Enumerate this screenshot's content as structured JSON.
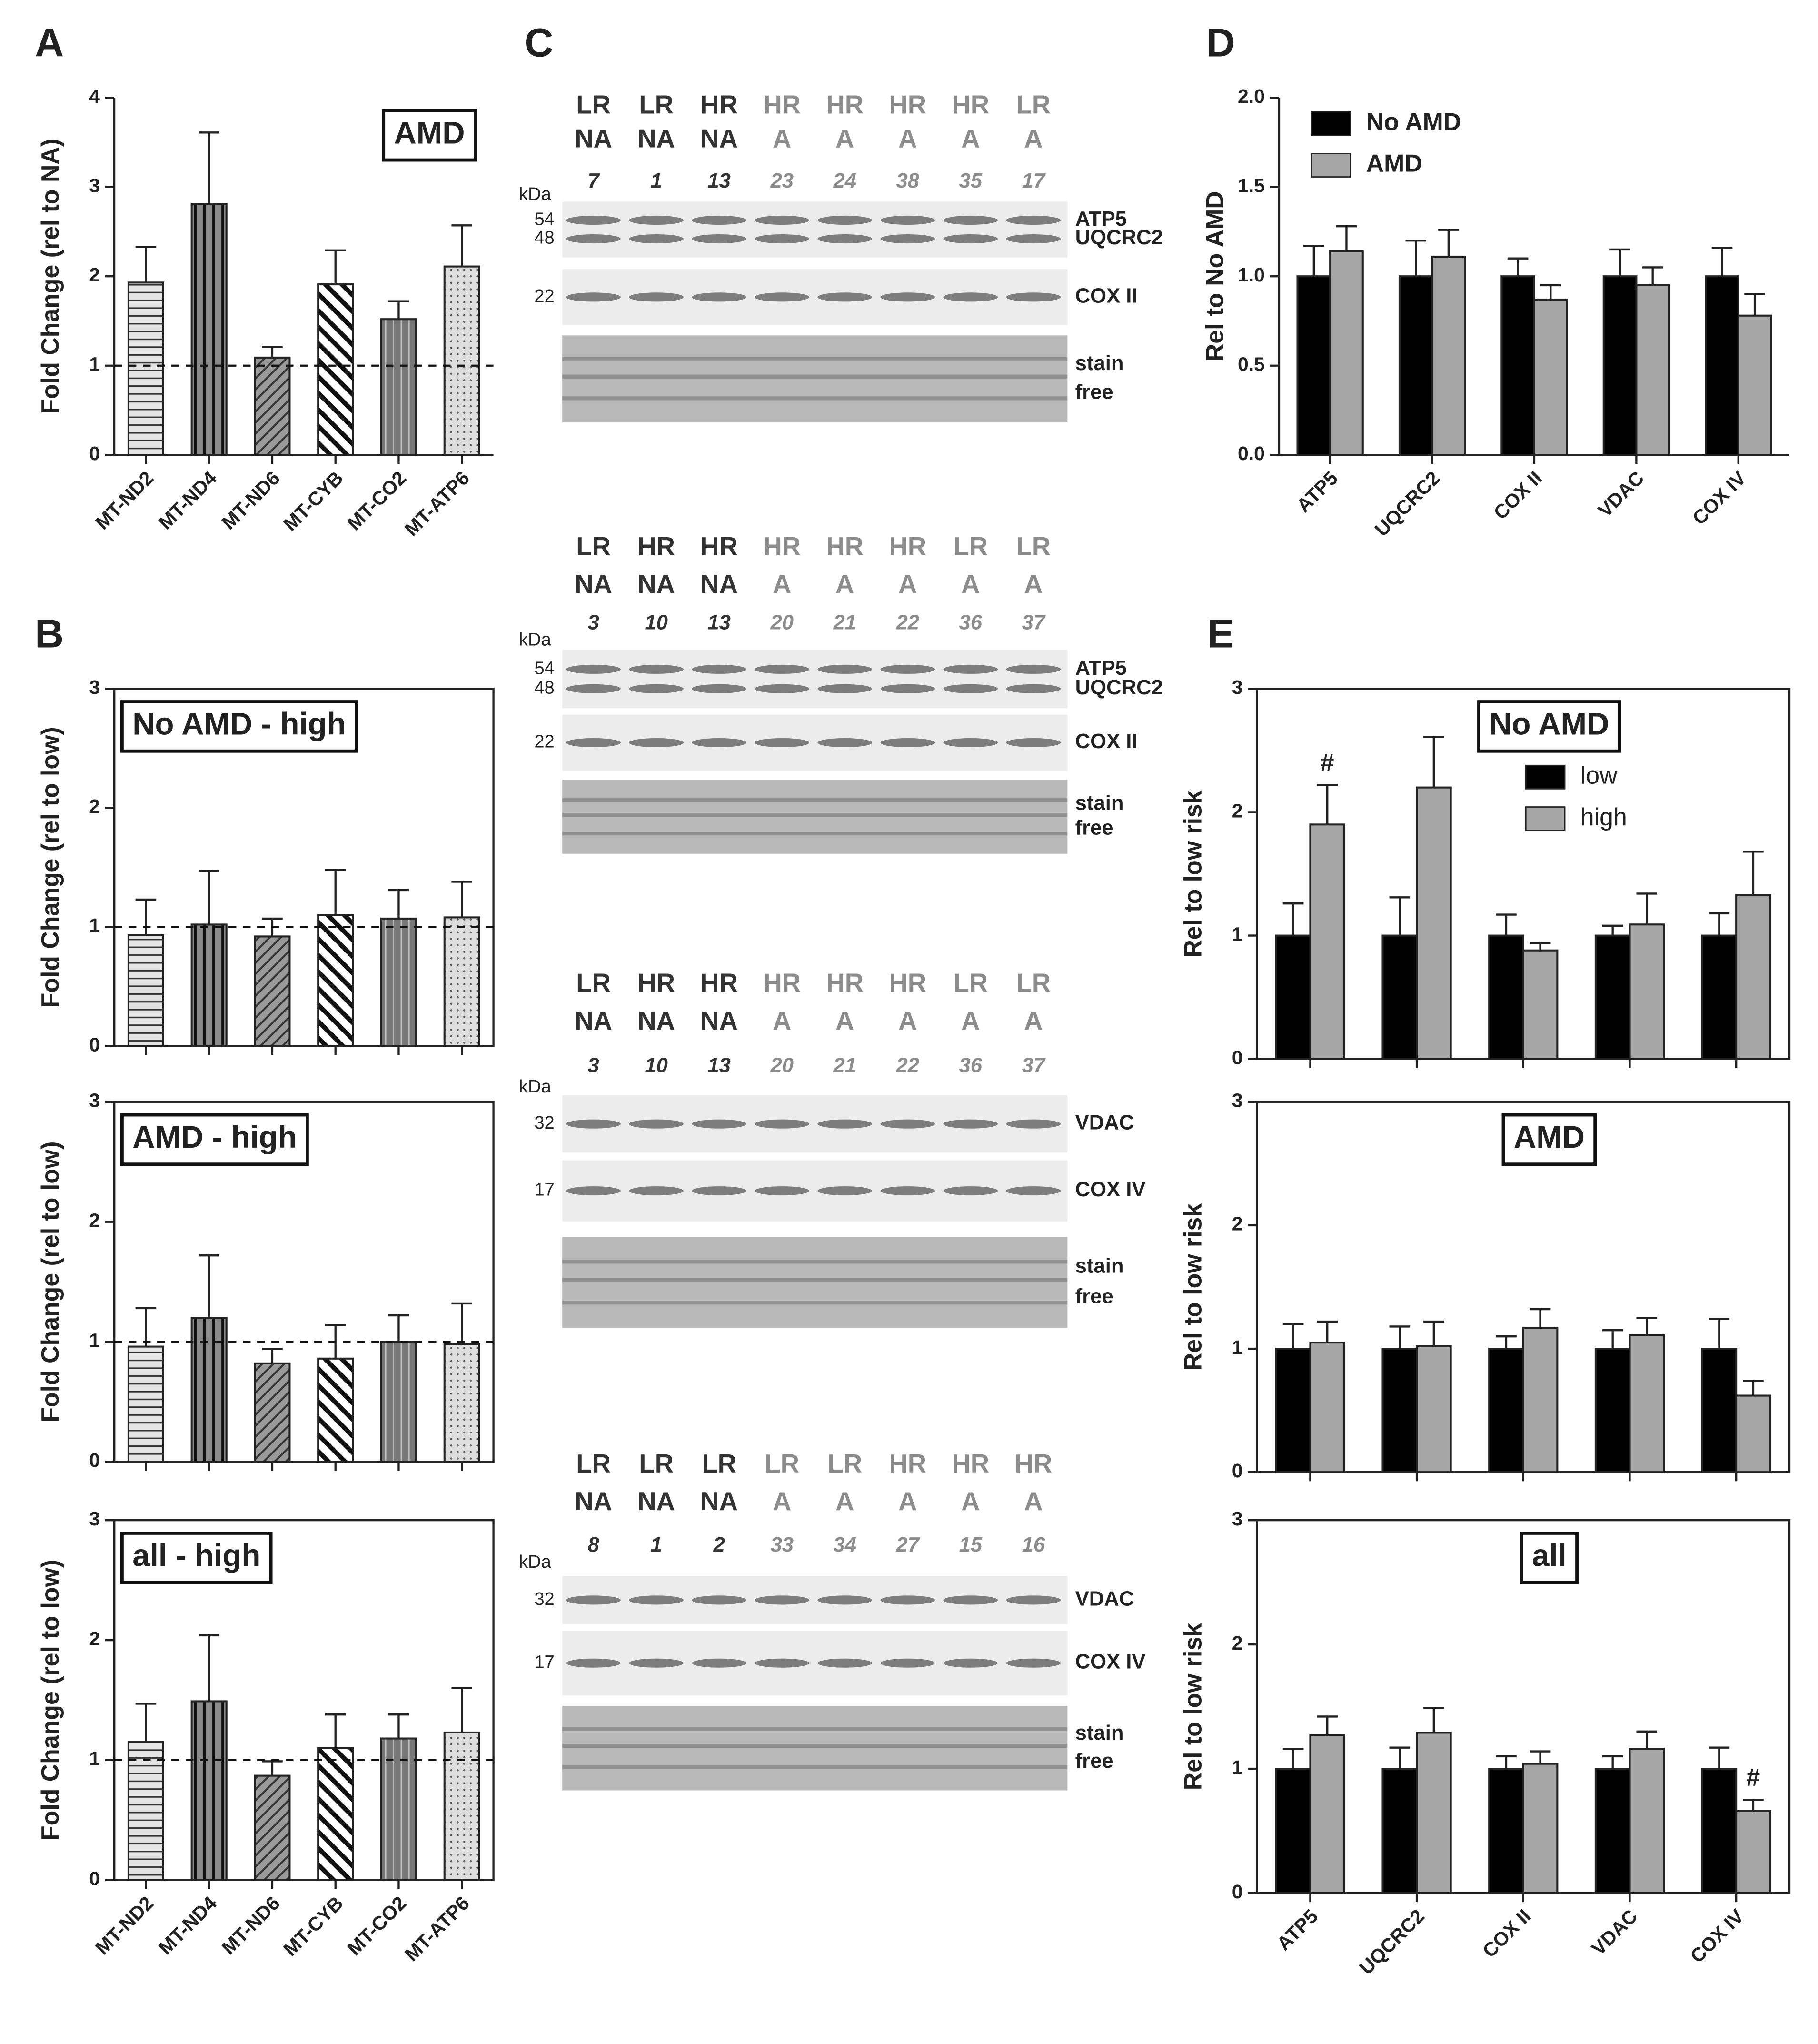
{
  "panel_labels": [
    "A",
    "B",
    "C",
    "D",
    "E"
  ],
  "chart_data": [
    {
      "type": "bar",
      "title": "AMD",
      "ylabel": "Fold Change (rel to NA)",
      "categories": [
        "MT-ND2",
        "MT-ND4",
        "MT-ND6",
        "MT-CYB",
        "MT-CO2",
        "MT-ATP6"
      ],
      "values": [
        1.93,
        2.81,
        1.09,
        1.91,
        1.52,
        2.11
      ],
      "errors": [
        0.4,
        0.8,
        0.12,
        0.38,
        0.2,
        0.46
      ],
      "patterns": [
        "p-h",
        "p-v",
        "p-d",
        "p-d2",
        "p-v2",
        "p-dot"
      ],
      "ylim": [
        0,
        4
      ],
      "yticks": [
        0,
        1,
        2,
        3,
        4
      ],
      "reference_line": 1
    },
    {
      "type": "bar",
      "title": "No AMD - high",
      "ylabel": "Fold Change (rel to low)",
      "categories": [
        null,
        null,
        null,
        null,
        null,
        null
      ],
      "values": [
        0.93,
        1.02,
        0.92,
        1.1,
        1.07,
        1.08
      ],
      "errors": [
        0.3,
        0.45,
        0.15,
        0.38,
        0.24,
        0.3
      ],
      "patterns": [
        "p-h",
        "p-v",
        "p-d",
        "p-d2",
        "p-v2",
        "p-dot"
      ],
      "ylim": [
        0,
        3
      ],
      "yticks": [
        0,
        1,
        2,
        3
      ],
      "reference_line": 1
    },
    {
      "type": "bar",
      "title": "AMD - high",
      "ylabel": "Fold Change (rel to low)",
      "categories": [
        null,
        null,
        null,
        null,
        null,
        null
      ],
      "values": [
        0.96,
        1.2,
        0.82,
        0.86,
        1.0,
        0.98
      ],
      "errors": [
        0.32,
        0.52,
        0.12,
        0.28,
        0.22,
        0.34
      ],
      "patterns": [
        "p-h",
        "p-v",
        "p-d",
        "p-d2",
        "p-v2",
        "p-dot"
      ],
      "ylim": [
        0,
        3
      ],
      "yticks": [
        0,
        1,
        2,
        3
      ],
      "reference_line": 1
    },
    {
      "type": "bar",
      "title": "all - high",
      "ylabel": "Fold Change (rel to low)",
      "categories": [
        "MT-ND2",
        "MT-ND4",
        "MT-ND6",
        "MT-CYB",
        "MT-CO2",
        "MT-ATP6"
      ],
      "values": [
        1.15,
        1.49,
        0.87,
        1.1,
        1.18,
        1.23
      ],
      "errors": [
        0.32,
        0.55,
        0.12,
        0.28,
        0.2,
        0.37
      ],
      "patterns": [
        "p-h",
        "p-v",
        "p-d",
        "p-d2",
        "p-v2",
        "p-dot"
      ],
      "ylim": [
        0,
        3
      ],
      "yticks": [
        0,
        1,
        2,
        3
      ],
      "reference_line": 1
    },
    {
      "type": "grouped-bar",
      "ylabel": "Rel to No AMD",
      "categories": [
        "ATP5",
        "UQCRC2",
        "COX II",
        "VDAC",
        "COX IV"
      ],
      "series": [
        {
          "name": "No AMD",
          "color": "#000000",
          "values": [
            1,
            1,
            1,
            1,
            1
          ],
          "errors": [
            0.17,
            0.2,
            0.1,
            0.15,
            0.16
          ]
        },
        {
          "name": "AMD",
          "color": "#a6a6a6",
          "values": [
            1.14,
            1.11,
            0.87,
            0.95,
            0.78
          ],
          "errors": [
            0.14,
            0.15,
            0.08,
            0.1,
            0.12
          ]
        }
      ],
      "ylim": [
        0,
        2
      ],
      "yticks": [
        {
          "value": 0,
          "label": "0.0"
        },
        {
          "value": 0.5,
          "label": "0.5"
        },
        {
          "value": 1,
          "label": "1.0"
        },
        {
          "value": 1.5,
          "label": "1.5"
        },
        {
          "value": 2,
          "label": "2.0"
        }
      ],
      "legend": "upper left"
    },
    {
      "type": "grouped-bar",
      "title": "No AMD",
      "ylabel": "Rel to low risk",
      "categories": [
        null,
        null,
        null,
        null,
        null
      ],
      "series": [
        {
          "name": "low",
          "color": "#000000",
          "values": [
            1,
            1,
            1,
            1,
            1
          ],
          "errors": [
            0.26,
            0.31,
            0.17,
            0.08,
            0.18
          ]
        },
        {
          "name": "high",
          "color": "#a6a6a6",
          "values": [
            1.9,
            2.2,
            0.88,
            1.09,
            1.33
          ],
          "errors": [
            0.32,
            0.41,
            0.06,
            0.25,
            0.35
          ]
        }
      ],
      "ylim": [
        0,
        3
      ],
      "yticks": [
        0,
        1,
        2,
        3
      ],
      "annotations": [
        "#"
      ],
      "legend": "upper center"
    },
    {
      "type": "grouped-bar",
      "title": "AMD",
      "ylabel": "Rel to low risk",
      "categories": [
        null,
        null,
        null,
        null,
        null
      ],
      "series": [
        {
          "color": "#000000",
          "values": [
            1,
            1,
            1,
            1,
            1
          ],
          "errors": [
            0.2,
            0.18,
            0.1,
            0.15,
            0.24
          ]
        },
        {
          "color": "#a6a6a6",
          "values": [
            1.05,
            1.02,
            1.17,
            1.11,
            0.62
          ],
          "errors": [
            0.17,
            0.2,
            0.15,
            0.14,
            0.12
          ]
        }
      ],
      "ylim": [
        0,
        3
      ],
      "yticks": [
        0,
        1,
        2,
        3
      ]
    },
    {
      "type": "grouped-bar",
      "title": "all",
      "ylabel": "Rel to low risk",
      "categories": [
        "ATP5",
        "UQCRC2",
        "COX II",
        "VDAC",
        "COX IV"
      ],
      "series": [
        {
          "color": "#000000",
          "values": [
            1,
            1,
            1,
            1,
            1
          ],
          "errors": [
            0.16,
            0.17,
            0.1,
            0.1,
            0.17
          ]
        },
        {
          "color": "#a6a6a6",
          "values": [
            1.27,
            1.29,
            1.04,
            1.16,
            0.66
          ],
          "errors": [
            0.15,
            0.2,
            0.1,
            0.14,
            0.09
          ]
        }
      ],
      "ylim": [
        0,
        3
      ],
      "yticks": [
        0,
        1,
        2,
        3
      ],
      "annotations": [
        "#"
      ]
    }
  ],
  "blots": [
    {
      "risk": [
        "LR",
        "LR",
        "HR",
        "HR",
        "HR",
        "HR",
        "HR",
        "LR"
      ],
      "status": [
        "NA",
        "NA",
        "NA",
        "A",
        "A",
        "A",
        "A",
        "A"
      ],
      "ids": [
        7,
        1,
        13,
        23,
        24,
        38,
        35,
        17
      ],
      "lane_colors": [
        "#333333",
        "#333333",
        "#333333",
        "#8c8c8c",
        "#8c8c8c",
        "#8c8c8c",
        "#8c8c8c",
        "#8c8c8c"
      ],
      "kda": "kDa",
      "rows": [
        {
          "markers": [
            "54",
            "48"
          ],
          "labels": [
            "ATP5",
            "UQCRC2"
          ]
        },
        {
          "markers": [
            "22"
          ],
          "labels": [
            "COX II"
          ]
        },
        {
          "labels": [
            "stain",
            "free"
          ]
        }
      ]
    },
    {
      "risk": [
        "LR",
        "HR",
        "HR",
        "HR",
        "HR",
        "HR",
        "LR",
        "LR"
      ],
      "status": [
        "NA",
        "NA",
        "NA",
        "A",
        "A",
        "A",
        "A",
        "A"
      ],
      "ids": [
        3,
        10,
        13,
        20,
        21,
        22,
        36,
        37
      ],
      "lane_colors": [
        "#333333",
        "#333333",
        "#333333",
        "#8c8c8c",
        "#8c8c8c",
        "#8c8c8c",
        "#8c8c8c",
        "#8c8c8c"
      ],
      "kda": "kDa",
      "rows": [
        {
          "markers": [
            "54",
            "48"
          ],
          "labels": [
            "ATP5",
            "UQCRC2"
          ]
        },
        {
          "markers": [
            "22"
          ],
          "labels": [
            "COX II"
          ]
        },
        {
          "labels": [
            "stain",
            "free"
          ]
        }
      ]
    },
    {
      "risk": [
        "LR",
        "HR",
        "HR",
        "HR",
        "HR",
        "HR",
        "LR",
        "LR"
      ],
      "status": [
        "NA",
        "NA",
        "NA",
        "A",
        "A",
        "A",
        "A",
        "A"
      ],
      "ids": [
        3,
        10,
        13,
        20,
        21,
        22,
        36,
        37
      ],
      "lane_colors": [
        "#333333",
        "#333333",
        "#333333",
        "#8c8c8c",
        "#8c8c8c",
        "#8c8c8c",
        "#8c8c8c",
        "#8c8c8c"
      ],
      "kda": "kDa",
      "rows": [
        {
          "markers": [
            "32"
          ],
          "labels": [
            "VDAC"
          ]
        },
        {
          "markers": [
            "17"
          ],
          "labels": [
            "COX IV"
          ]
        },
        {
          "labels": [
            "stain",
            "free"
          ]
        }
      ]
    },
    {
      "risk": [
        "LR",
        "LR",
        "LR",
        "LR",
        "LR",
        "HR",
        "HR",
        "HR"
      ],
      "status": [
        "NA",
        "NA",
        "NA",
        "A",
        "A",
        "A",
        "A",
        "A"
      ],
      "ids": [
        8,
        1,
        2,
        33,
        34,
        27,
        15,
        16
      ],
      "lane_colors": [
        "#333333",
        "#333333",
        "#333333",
        "#8c8c8c",
        "#8c8c8c",
        "#8c8c8c",
        "#8c8c8c",
        "#8c8c8c"
      ],
      "kda": "kDa",
      "rows": [
        {
          "markers": [
            "32"
          ],
          "labels": [
            "VDAC"
          ]
        },
        {
          "markers": [
            "17"
          ],
          "labels": [
            "COX IV"
          ]
        },
        {
          "labels": [
            "stain",
            "free"
          ]
        }
      ]
    }
  ]
}
